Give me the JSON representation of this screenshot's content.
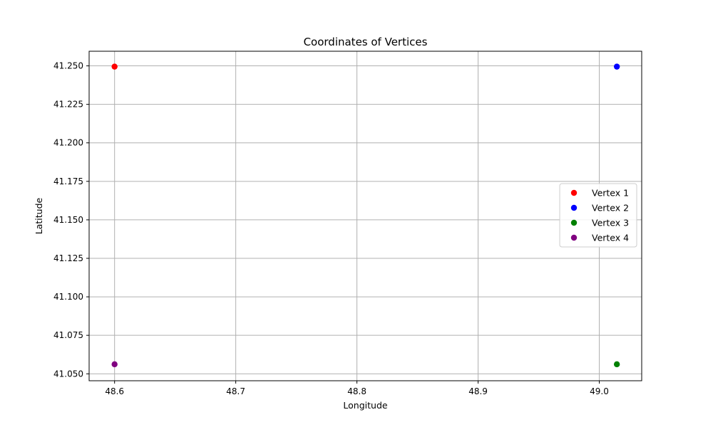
{
  "chart_data": {
    "type": "scatter",
    "title": "Coordinates of Vertices",
    "xlabel": "Longitude",
    "ylabel": "Latitude",
    "xlim": [
      48.579,
      49.035
    ],
    "ylim": [
      41.0455,
      41.2595
    ],
    "x_ticks": [
      48.6,
      48.7,
      48.8,
      48.9,
      49.0
    ],
    "x_tick_labels": [
      "48.6",
      "48.7",
      "48.8",
      "48.9",
      "49.0"
    ],
    "y_ticks": [
      41.05,
      41.075,
      41.1,
      41.125,
      41.15,
      41.175,
      41.2,
      41.225,
      41.25
    ],
    "y_tick_labels": [
      "41.050",
      "41.075",
      "41.100",
      "41.125",
      "41.150",
      "41.175",
      "41.200",
      "41.225",
      "41.250"
    ],
    "grid": true,
    "legend_position": "center-right",
    "series": [
      {
        "name": "Vertex 1",
        "color": "#ff0000",
        "points": [
          [
            48.6,
            41.2495
          ]
        ]
      },
      {
        "name": "Vertex 2",
        "color": "#0000ff",
        "points": [
          [
            49.0145,
            41.2495
          ]
        ]
      },
      {
        "name": "Vertex 3",
        "color": "#008000",
        "points": [
          [
            49.0145,
            41.0562
          ]
        ]
      },
      {
        "name": "Vertex 4",
        "color": "#800080",
        "points": [
          [
            48.6,
            41.0562
          ]
        ]
      }
    ]
  }
}
